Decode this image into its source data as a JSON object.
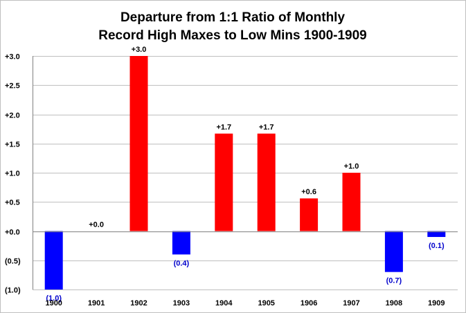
{
  "chart_data": {
    "type": "bar",
    "title_lines": [
      "Departure from 1:1 Ratio of Monthly",
      "Record High Maxes to Low Mins 1900-1909"
    ],
    "categories": [
      "1900",
      "1901",
      "1902",
      "1903",
      "1904",
      "1905",
      "1906",
      "1907",
      "1908",
      "1909"
    ],
    "values": [
      -1.0,
      0.0,
      3.0,
      -0.4,
      1.67,
      1.67,
      0.56,
      1.0,
      -0.7,
      -0.1
    ],
    "data_labels": [
      "(1.0)",
      "+0.0",
      "+3.0",
      "(0.4)",
      "+1.7",
      "+1.7",
      "+0.6",
      "+1.0",
      "(0.7)",
      "(0.1)"
    ],
    "y_ticks": [
      3.0,
      2.5,
      2.0,
      1.5,
      1.0,
      0.5,
      0.0,
      -0.5,
      -1.0
    ],
    "y_tick_labels": [
      "+3.0",
      "+2.5",
      "+2.0",
      "+1.5",
      "+1.0",
      "+0.5",
      "+0.0",
      "(0.5)",
      "(1.0)"
    ],
    "ylim": [
      -1.0,
      3.0
    ],
    "grid": true,
    "legend": "none",
    "colors": {
      "positive": "#ff0000",
      "negative": "#0000ff",
      "positive_label": "#000000",
      "negative_label": "#0000cc"
    }
  }
}
